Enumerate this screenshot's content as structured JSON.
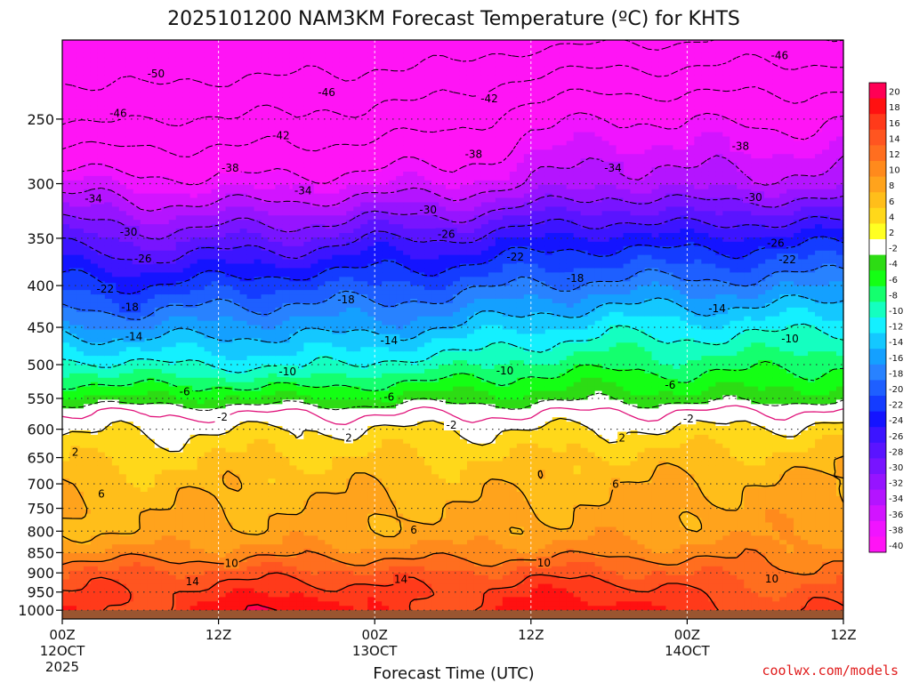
{
  "chart_data": {
    "type": "heatmap",
    "title": "2025101200 NAM3KM Forecast Temperature (ºC) for KHTS",
    "xlabel": "Forecast Time (UTC)",
    "ylabel": "",
    "credit": "coolwx.com/models",
    "x_range_hours": [
      0,
      60
    ],
    "y_range_hpa": [
      200,
      1025
    ],
    "y_scale": "log-pressure (inverted)",
    "terrain_below_hpa": 1000,
    "terrain_color": "#9a5530",
    "pressure_ticks": [
      {
        "label": "250",
        "p": 250
      },
      {
        "label": "300",
        "p": 300
      },
      {
        "label": "350",
        "p": 350
      },
      {
        "label": "400",
        "p": 400
      },
      {
        "label": "450",
        "p": 450
      },
      {
        "label": "500",
        "p": 500
      },
      {
        "label": "550",
        "p": 550
      },
      {
        "label": "600",
        "p": 600
      },
      {
        "label": "650",
        "p": 650
      },
      {
        "label": "700",
        "p": 700
      },
      {
        "label": "750",
        "p": 750
      },
      {
        "label": "800",
        "p": 800
      },
      {
        "label": "850",
        "p": 850
      },
      {
        "label": "900",
        "p": 900
      },
      {
        "label": "950",
        "p": 950
      },
      {
        "label": "1000",
        "p": 1000
      }
    ],
    "time_ticks": [
      {
        "label": "00Z",
        "sub1": "12OCT",
        "sub2": "2025",
        "h": 0
      },
      {
        "label": "12Z",
        "sub1": "",
        "sub2": "",
        "h": 12
      },
      {
        "label": "00Z",
        "sub1": "13OCT",
        "sub2": "",
        "h": 24
      },
      {
        "label": "12Z",
        "sub1": "",
        "sub2": "",
        "h": 36
      },
      {
        "label": "00Z",
        "sub1": "14OCT",
        "sub2": "",
        "h": 48
      },
      {
        "label": "12Z",
        "sub1": "",
        "sub2": "",
        "h": 60
      }
    ],
    "times_hours": [
      0,
      6,
      12,
      18,
      24,
      30,
      36,
      42,
      48,
      54,
      60
    ],
    "temperature_profile": {
      "pressure_hpa": [
        200,
        250,
        300,
        350,
        400,
        450,
        500,
        550,
        570,
        600,
        650,
        700,
        750,
        800,
        850,
        900,
        950,
        1000,
        1025
      ],
      "temp_c_by_time": [
        [
          -54,
          -46,
          -35,
          -27,
          -21,
          -15,
          -9,
          -3,
          0,
          1.5,
          3.5,
          5.5,
          6.2,
          6,
          8.5,
          12.5,
          14,
          15,
          15
        ],
        [
          -55,
          -47,
          -37,
          -29,
          -22,
          -16,
          -10,
          -4,
          -0.5,
          1.5,
          3.5,
          5.0,
          5.8,
          6,
          8.5,
          12.5,
          14,
          13.5,
          13.5
        ],
        [
          -54,
          -45,
          -37,
          -28,
          -21,
          -15,
          -10,
          -3.5,
          -0.5,
          2.0,
          4.0,
          5.2,
          6.0,
          6.5,
          8.8,
          12.5,
          15,
          17,
          17
        ],
        [
          -54,
          -46,
          -37,
          -28,
          -20,
          -15,
          -11,
          -4,
          -0.5,
          2.0,
          4.0,
          5.2,
          6.2,
          6.8,
          9.0,
          12.8,
          16,
          19,
          19
        ],
        [
          -53,
          -44,
          -36,
          -26,
          -20,
          -15,
          -9,
          -3.5,
          -0.5,
          2.0,
          4.2,
          5.4,
          6.3,
          6.8,
          9.0,
          12.5,
          14.5,
          15,
          15
        ],
        [
          -53,
          -44,
          -36,
          -26,
          -19,
          -14,
          -9,
          -3,
          -0.5,
          2.0,
          4.2,
          5.2,
          6.0,
          6.5,
          8.5,
          12.0,
          13.5,
          13.5,
          13.5
        ],
        [
          -51,
          -39,
          -34,
          -24,
          -18,
          -12,
          -7,
          -3,
          -0.5,
          2.0,
          4.2,
          5.4,
          6.2,
          6.8,
          9.2,
          13.0,
          15.5,
          17,
          17
        ],
        [
          -51,
          -38,
          -32,
          -23,
          -17,
          -11,
          -7,
          -2.5,
          0,
          2.2,
          4.4,
          5.8,
          6.5,
          7.0,
          9.2,
          12.8,
          15.5,
          18,
          18
        ],
        [
          -50,
          -38,
          -33,
          -24,
          -17,
          -11,
          -7,
          -3,
          0,
          2.2,
          4.6,
          6.0,
          6.8,
          7.2,
          9.0,
          12.0,
          14.0,
          15,
          15
        ],
        [
          -49,
          -39,
          -33,
          -23,
          -17,
          -11,
          -7,
          -3,
          0,
          2.5,
          4.8,
          6.3,
          6.8,
          7.2,
          9.0,
          10.5,
          12.5,
          13.5,
          13.5
        ],
        [
          -49,
          -38,
          -33,
          -23,
          -16,
          -10,
          -6,
          -2.5,
          0.5,
          2.6,
          4.8,
          6.2,
          6.8,
          7.4,
          9.0,
          11.0,
          12.5,
          14,
          14
        ]
      ]
    },
    "contour_levels": [
      -50,
      -46,
      -42,
      -38,
      -34,
      -30,
      -26,
      -22,
      -18,
      -14,
      -10,
      -6,
      -2,
      2,
      6,
      10,
      14,
      18
    ],
    "contour_labels": [
      {
        "text": "-50",
        "h": 7.2,
        "p": 220
      },
      {
        "text": "-46",
        "h": 4.3,
        "p": 246
      },
      {
        "text": "-46",
        "h": 20.3,
        "p": 232
      },
      {
        "text": "-46",
        "h": 55.1,
        "p": 209
      },
      {
        "text": "-42",
        "h": 16.8,
        "p": 262
      },
      {
        "text": "-42",
        "h": 32.8,
        "p": 236
      },
      {
        "text": "-38",
        "h": 12.9,
        "p": 287
      },
      {
        "text": "-38",
        "h": 31.6,
        "p": 276
      },
      {
        "text": "-38",
        "h": 52.1,
        "p": 270
      },
      {
        "text": "-34",
        "h": 2.4,
        "p": 313
      },
      {
        "text": "-34",
        "h": 18.5,
        "p": 306
      },
      {
        "text": "-34",
        "h": 42.3,
        "p": 287
      },
      {
        "text": "-30",
        "h": 5.1,
        "p": 344
      },
      {
        "text": "-30",
        "h": 28.1,
        "p": 323
      },
      {
        "text": "-30",
        "h": 53.1,
        "p": 312
      },
      {
        "text": "-26",
        "h": 6.2,
        "p": 371
      },
      {
        "text": "-26",
        "h": 29.5,
        "p": 346
      },
      {
        "text": "-26",
        "h": 54.8,
        "p": 355
      },
      {
        "text": "-22",
        "h": 3.3,
        "p": 404
      },
      {
        "text": "-22",
        "h": 34.8,
        "p": 369
      },
      {
        "text": "-22",
        "h": 55.7,
        "p": 372
      },
      {
        "text": "-18",
        "h": 5.2,
        "p": 425
      },
      {
        "text": "-18",
        "h": 21.8,
        "p": 416
      },
      {
        "text": "-18",
        "h": 39.4,
        "p": 392
      },
      {
        "text": "-14",
        "h": 5.5,
        "p": 462
      },
      {
        "text": "-14",
        "h": 25.1,
        "p": 467
      },
      {
        "text": "-14",
        "h": 50.3,
        "p": 427
      },
      {
        "text": "-10",
        "h": 17.3,
        "p": 510
      },
      {
        "text": "-10",
        "h": 34.0,
        "p": 509
      },
      {
        "text": "-10",
        "h": 55.9,
        "p": 465
      },
      {
        "text": "-6",
        "h": 9.4,
        "p": 540
      },
      {
        "text": "-6",
        "h": 25.1,
        "p": 548
      },
      {
        "text": "-6",
        "h": 46.7,
        "p": 530
      },
      {
        "text": "-2",
        "h": 12.3,
        "p": 580
      },
      {
        "text": "-2",
        "h": 29.9,
        "p": 593
      },
      {
        "text": "-2",
        "h": 48.1,
        "p": 583
      },
      {
        "text": "2",
        "h": 1.0,
        "p": 640
      },
      {
        "text": "2",
        "h": 22.0,
        "p": 615
      },
      {
        "text": "2",
        "h": 43.0,
        "p": 615
      },
      {
        "text": "6",
        "h": 3.0,
        "p": 720
      },
      {
        "text": "6",
        "h": 27.0,
        "p": 797
      },
      {
        "text": "6",
        "h": 42.5,
        "p": 701
      },
      {
        "text": "10",
        "h": 13.0,
        "p": 876
      },
      {
        "text": "10",
        "h": 37.0,
        "p": 875
      },
      {
        "text": "10",
        "h": 54.5,
        "p": 916
      },
      {
        "text": "14",
        "h": 10.0,
        "p": 922
      },
      {
        "text": "14",
        "h": 26.0,
        "p": 917
      }
    ],
    "colorbar": {
      "labels": [
        "20",
        "18",
        "16",
        "14",
        "12",
        "10",
        "8",
        "6",
        "4",
        "2",
        "-2",
        "-4",
        "-6",
        "-8",
        "-10",
        "-12",
        "-14",
        "-16",
        "-18",
        "-20",
        "-22",
        "-24",
        "-26",
        "-28",
        "-30",
        "-32",
        "-34",
        "-36",
        "-38",
        "-40"
      ],
      "colors": [
        "#ff0055",
        "#ff1111",
        "#ff3a1a",
        "#ff5520",
        "#ff6e1f",
        "#ff8a1c",
        "#ffa31c",
        "#ffbe1a",
        "#ffd81a",
        "#ffff22",
        "#ffffff",
        "#2ddc14",
        "#14ff14",
        "#14ff6e",
        "#14ffc0",
        "#14f0ff",
        "#14c8ff",
        "#14a0ff",
        "#2882ff",
        "#1e5fff",
        "#143cff",
        "#1414ff",
        "#3c14ff",
        "#5a14ff",
        "#7814ff",
        "#9614ff",
        "#b414ff",
        "#d214ff",
        "#f014ff",
        "#ff14f5"
      ]
    }
  }
}
